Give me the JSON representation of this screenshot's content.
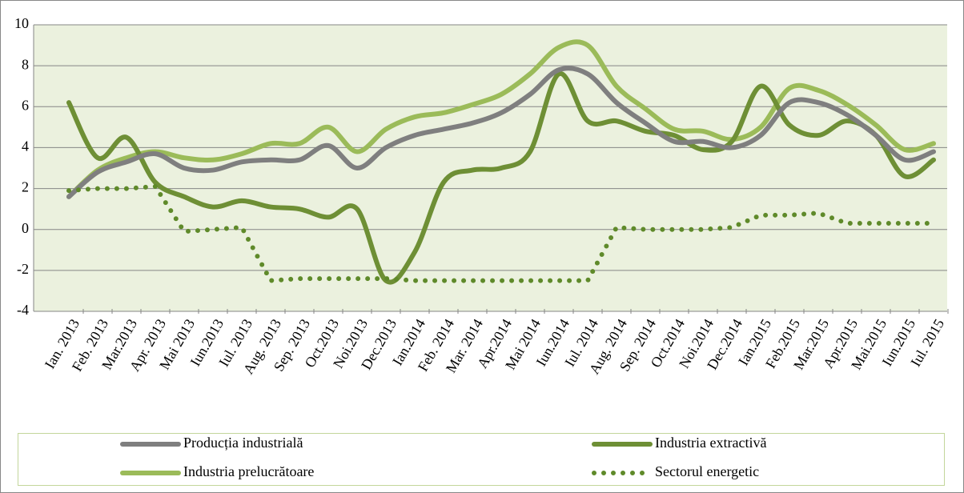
{
  "chart_data": {
    "type": "line",
    "categories": [
      "Ian. 2013",
      "Feb. 2013",
      "Mar.2013",
      "Apr. 2013",
      "Mai 2013",
      "Iun.2013",
      "Iul. 2013",
      "Aug. 2013",
      "Sep. 2013",
      "Oct.2013",
      "Noi.2013",
      "Dec.2013",
      "Ian.2014",
      "Feb. 2014",
      "Mar. 2014",
      "Apr.2014",
      "Mai 2014",
      "Iun.2014",
      "Iul. 2014",
      "Aug. 2014",
      "Sep. 2014",
      "Oct.2014",
      "Noi.2014",
      "Dec.2014",
      "Ian.2015",
      "Feb.2015",
      "Mar.2015",
      "Apr.2015",
      "Mai.2015",
      "Iun.2015",
      "Iul. 2015"
    ],
    "series": [
      {
        "name": "Producția industrială",
        "color": "#7f7f7f",
        "style": "solid",
        "values": [
          1.6,
          2.8,
          3.3,
          3.7,
          3.0,
          2.9,
          3.3,
          3.4,
          3.4,
          4.1,
          3.0,
          4.0,
          4.6,
          4.9,
          5.2,
          5.7,
          6.6,
          7.8,
          7.6,
          6.2,
          5.2,
          4.3,
          4.3,
          4.0,
          4.6,
          6.2,
          6.2,
          5.6,
          4.6,
          3.4,
          3.8
        ]
      },
      {
        "name": "Industria extractivă",
        "color": "#6e8f35",
        "style": "solid",
        "values": [
          6.2,
          3.5,
          4.5,
          2.3,
          1.6,
          1.1,
          1.4,
          1.1,
          1.0,
          0.6,
          1.0,
          -2.5,
          -1.1,
          2.3,
          2.9,
          3.0,
          3.8,
          7.6,
          5.3,
          5.3,
          4.8,
          4.6,
          3.9,
          4.3,
          7.0,
          5.1,
          4.6,
          5.3,
          4.6,
          2.6,
          3.4
        ]
      },
      {
        "name": "Industria prelucrătoare",
        "color": "#9bbb59",
        "style": "solid",
        "values": [
          1.6,
          2.9,
          3.5,
          3.8,
          3.5,
          3.4,
          3.7,
          4.2,
          4.2,
          5.0,
          3.8,
          4.9,
          5.5,
          5.7,
          6.1,
          6.6,
          7.6,
          8.9,
          9.0,
          7.0,
          5.9,
          4.9,
          4.8,
          4.4,
          5.0,
          6.9,
          6.8,
          6.1,
          5.1,
          3.9,
          4.2
        ]
      },
      {
        "name": "Sectorul energetic",
        "color": "#5f8a2a",
        "style": "dotted",
        "values": [
          1.9,
          2.0,
          2.0,
          2.1,
          -0.1,
          0.0,
          0.1,
          -2.5,
          -2.4,
          -2.4,
          -2.4,
          -2.4,
          -2.5,
          -2.5,
          -2.5,
          -2.5,
          -2.5,
          -2.5,
          -2.5,
          0.1,
          0.0,
          0.0,
          0.0,
          0.1,
          0.7,
          0.7,
          0.8,
          0.3,
          0.3,
          0.3,
          0.3
        ]
      }
    ],
    "ylim": [
      -4,
      10
    ],
    "yticks": [
      -4,
      -2,
      0,
      2,
      4,
      6,
      8,
      10
    ],
    "grid": true,
    "legend": "bottom"
  }
}
